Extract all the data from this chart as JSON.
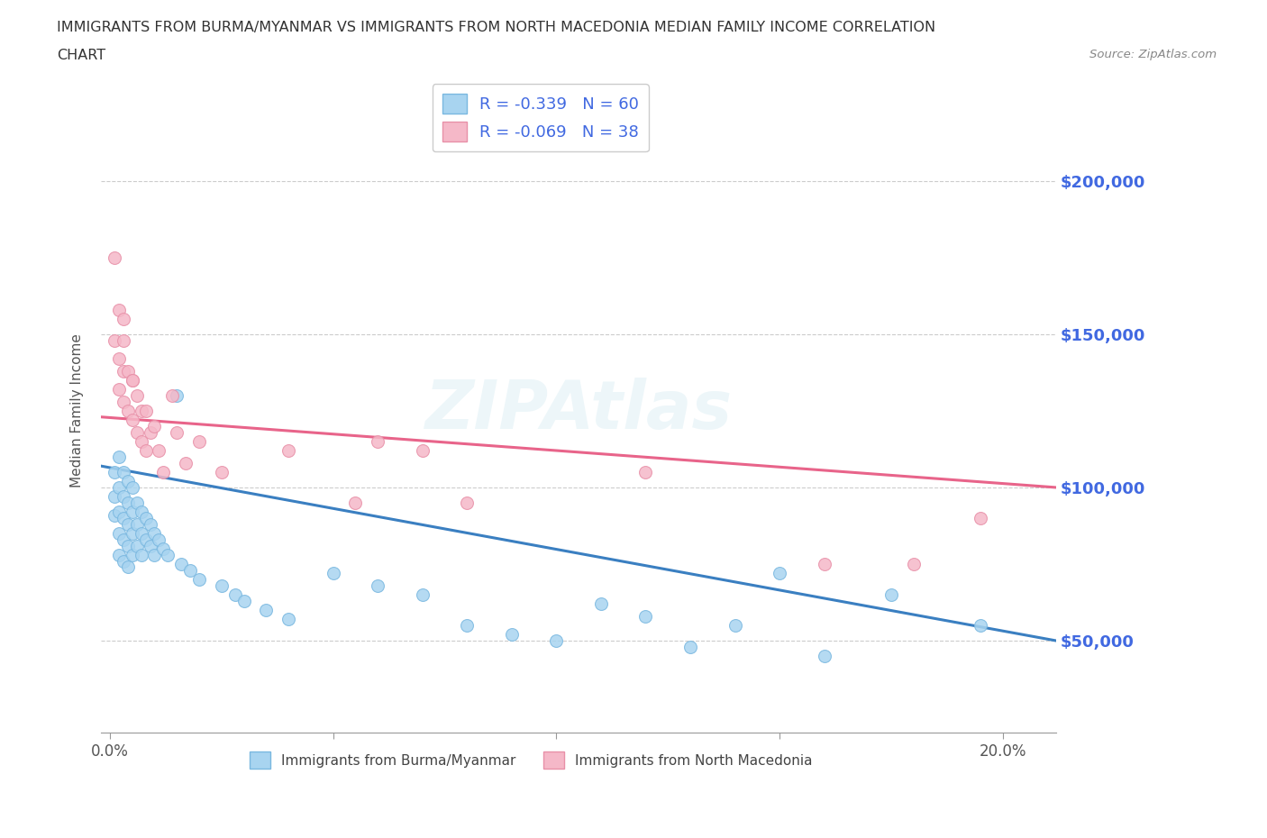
{
  "title_line1": "IMMIGRANTS FROM BURMA/MYANMAR VS IMMIGRANTS FROM NORTH MACEDONIA MEDIAN FAMILY INCOME CORRELATION",
  "title_line2": "CHART",
  "source_text": "Source: ZipAtlas.com",
  "ylabel": "Median Family Income",
  "xlim": [
    -0.002,
    0.212
  ],
  "ylim": [
    20000,
    230000
  ],
  "xticks": [
    0.0,
    0.05,
    0.1,
    0.15,
    0.2
  ],
  "xtick_labels": [
    "0.0%",
    "",
    "",
    "",
    "20.0%"
  ],
  "ytick_positions": [
    50000,
    100000,
    150000,
    200000
  ],
  "right_ytick_labels": [
    "$50,000",
    "$100,000",
    "$150,000",
    "$200,000"
  ],
  "color_burma": "#a8d4f0",
  "color_burma_edge": "#7ab8e0",
  "color_burma_line": "#3a7fc1",
  "color_macedonia": "#f5b8c8",
  "color_macedonia_edge": "#e890a8",
  "color_macedonia_line": "#e8648a",
  "color_right_axis": "#4169E1",
  "color_grid": "#cccccc",
  "legend_R_burma": "R = -0.339   N = 60",
  "legend_R_macedonia": "R = -0.069   N = 38",
  "legend_label_burma": "Immigrants from Burma/Myanmar",
  "legend_label_macedonia": "Immigrants from North Macedonia",
  "watermark": "ZIPAtlas",
  "burma_x": [
    0.001,
    0.001,
    0.001,
    0.002,
    0.002,
    0.002,
    0.002,
    0.002,
    0.003,
    0.003,
    0.003,
    0.003,
    0.003,
    0.004,
    0.004,
    0.004,
    0.004,
    0.004,
    0.005,
    0.005,
    0.005,
    0.005,
    0.006,
    0.006,
    0.006,
    0.007,
    0.007,
    0.007,
    0.008,
    0.008,
    0.009,
    0.009,
    0.01,
    0.01,
    0.011,
    0.012,
    0.013,
    0.015,
    0.016,
    0.018,
    0.02,
    0.025,
    0.028,
    0.03,
    0.035,
    0.04,
    0.05,
    0.06,
    0.07,
    0.08,
    0.09,
    0.1,
    0.11,
    0.12,
    0.13,
    0.14,
    0.15,
    0.16,
    0.175,
    0.195
  ],
  "burma_y": [
    105000,
    97000,
    91000,
    110000,
    100000,
    92000,
    85000,
    78000,
    105000,
    97000,
    90000,
    83000,
    76000,
    102000,
    95000,
    88000,
    81000,
    74000,
    100000,
    92000,
    85000,
    78000,
    95000,
    88000,
    81000,
    92000,
    85000,
    78000,
    90000,
    83000,
    88000,
    81000,
    85000,
    78000,
    83000,
    80000,
    78000,
    130000,
    75000,
    73000,
    70000,
    68000,
    65000,
    63000,
    60000,
    57000,
    72000,
    68000,
    65000,
    55000,
    52000,
    50000,
    62000,
    58000,
    48000,
    55000,
    72000,
    45000,
    65000,
    55000
  ],
  "macedonia_x": [
    0.001,
    0.001,
    0.002,
    0.002,
    0.002,
    0.003,
    0.003,
    0.003,
    0.004,
    0.004,
    0.005,
    0.005,
    0.006,
    0.006,
    0.007,
    0.007,
    0.008,
    0.008,
    0.009,
    0.01,
    0.011,
    0.012,
    0.014,
    0.015,
    0.017,
    0.02,
    0.025,
    0.04,
    0.055,
    0.06,
    0.07,
    0.08,
    0.12,
    0.16,
    0.18,
    0.195,
    0.003,
    0.005
  ],
  "macedonia_y": [
    175000,
    148000,
    158000,
    142000,
    132000,
    148000,
    138000,
    128000,
    138000,
    125000,
    135000,
    122000,
    130000,
    118000,
    125000,
    115000,
    125000,
    112000,
    118000,
    120000,
    112000,
    105000,
    130000,
    118000,
    108000,
    115000,
    105000,
    112000,
    95000,
    115000,
    112000,
    95000,
    105000,
    75000,
    75000,
    90000,
    155000,
    135000
  ]
}
